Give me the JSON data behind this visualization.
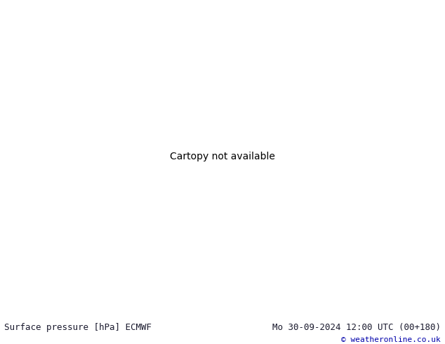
{
  "title_left": "Surface pressure [hPa] ECMWF",
  "title_right": "Mo 30-09-2024 12:00 UTC (00+180)",
  "copyright": "© weatheronline.co.uk",
  "bg_color": "#d0d0d8",
  "land_color": "#aaddaa",
  "water_color": "#d0d0d8",
  "bottom_bar_color": "#e8e8e8",
  "bottom_text_color": "#1a1a2e",
  "isobar_black_color": "#000000",
  "isobar_red_color": "#cc0000",
  "isobar_blue_color": "#0000cc",
  "font_size_bottom": 9,
  "font_size_labels": 7,
  "figsize": [
    6.34,
    4.9
  ],
  "dpi": 100
}
